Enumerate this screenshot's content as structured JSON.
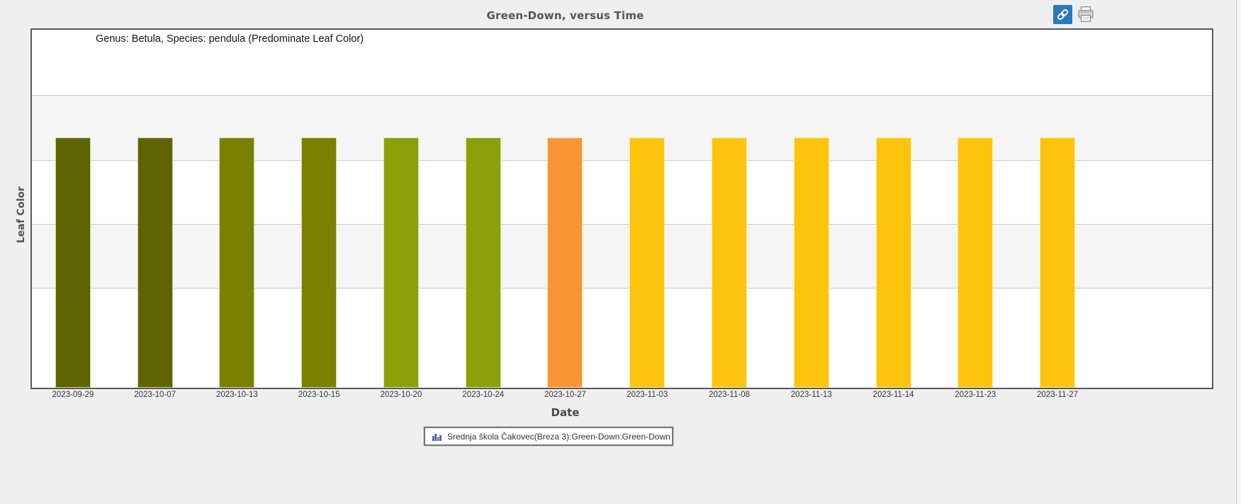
{
  "header": {
    "title": "Green-Down, versus Time"
  },
  "toolbar": {
    "link_icon": "link-icon",
    "print_icon": "printer-icon",
    "link_button_color": "#2979BD"
  },
  "plot": {
    "subtitle": "Genus: Betula, Species: pendula (Predominate Leaf Color)"
  },
  "axes": {
    "x_label": "Date",
    "y_label": "Leaf Color"
  },
  "legend": {
    "icon": "bar-chart-icon",
    "label": "Srednja škola Čakovec(Breza 3):Green-Down:Green-Down"
  },
  "colors": {
    "page_background": "#EFEFEF",
    "band_gray": "#F5F5F6",
    "grid_line": "#CBCBCB",
    "frame_border": "#58595B",
    "legend_icon_blue": "#3F5AA9"
  },
  "chart_data": {
    "type": "bar",
    "title": "Green-Down, versus Time",
    "subtitle": "Genus: Betula, Species: pendula (Predominate Leaf Color)",
    "xlabel": "Date",
    "ylabel": "Leaf Color",
    "grid": "horizontal gray/white bands, horizontal gridlines on",
    "legend_position": "bottom-center",
    "legend_entries": [
      "Srednja škola Čakovec(Breza 3):Green-Down:Green-Down"
    ],
    "note": "All bars have equal height; the encoded value is the predominant leaf color of each observation date, shown by bar fill color.",
    "categories": [
      "2023-09-29",
      "2023-10-07",
      "2023-10-13",
      "2023-10-15",
      "2023-10-20",
      "2023-10-24",
      "2023-10-27",
      "2023-11-03",
      "2023-11-08",
      "2023-11-13",
      "2023-11-14",
      "2023-11-23",
      "2023-11-27"
    ],
    "series": [
      {
        "name": "Srednja škola Čakovec(Breza 3):Green-Down:Green-Down",
        "values": [
          "dark-olive-green",
          "dark-olive-green",
          "olive",
          "olive",
          "yellow-green",
          "yellow-green",
          "orange",
          "golden-yellow",
          "golden-yellow",
          "golden-yellow",
          "golden-yellow",
          "golden-yellow",
          "golden-yellow"
        ],
        "bar_colors": [
          "#5E6402",
          "#5E6402",
          "#798002",
          "#798002",
          "#8CA00A",
          "#8CA00A",
          "#F99434",
          "#FCC40D",
          "#FCC40D",
          "#FCC40D",
          "#FCC40D",
          "#FCC40D",
          "#FCC40D"
        ]
      }
    ]
  }
}
